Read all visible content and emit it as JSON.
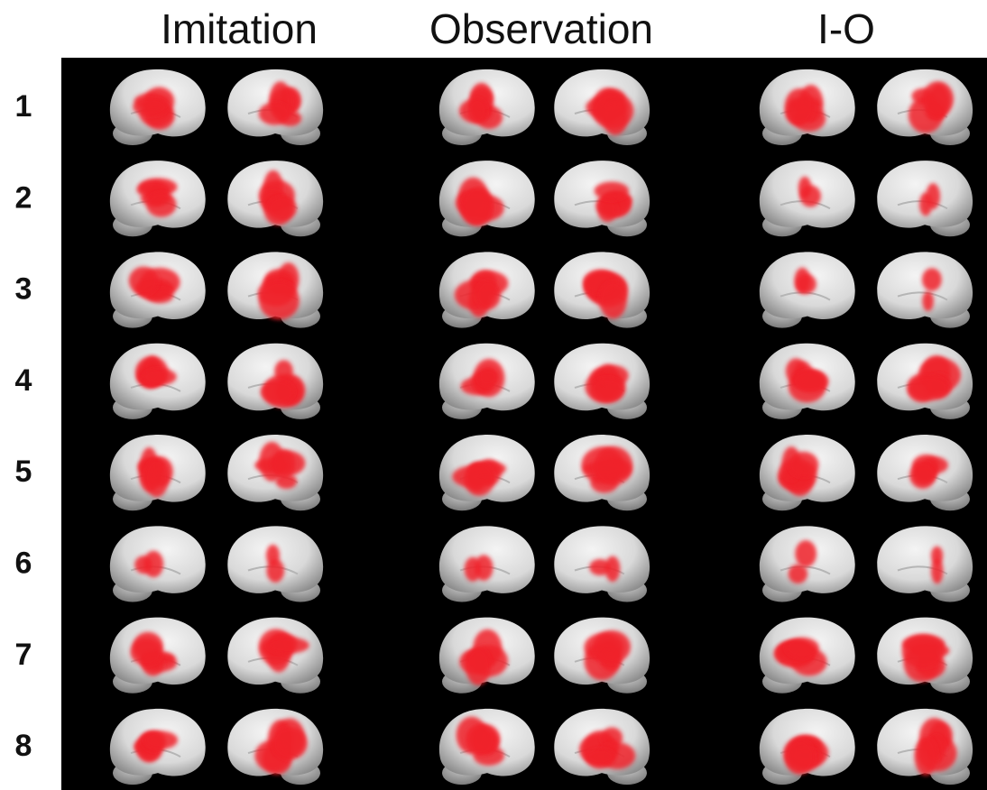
{
  "columns": [
    "Imitation",
    "Observation",
    "I-O"
  ],
  "rows": [
    "1",
    "2",
    "3",
    "4",
    "5",
    "6",
    "7",
    "8"
  ]
}
